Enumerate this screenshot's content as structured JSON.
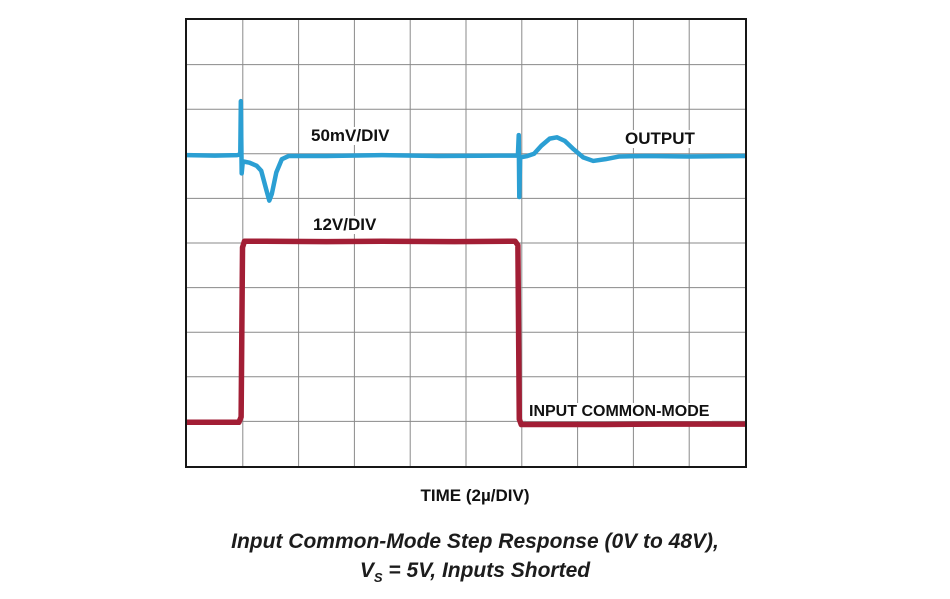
{
  "colors": {
    "output_trace": "#2B9FD3",
    "input_trace": "#A21E35",
    "grid": "#8a8a8a",
    "border": "#161616",
    "label_text": "#111111"
  },
  "plot": {
    "grid_divisions_x": 10,
    "grid_divisions_y": 10,
    "labels": {
      "output_scale": "50mV/DIV",
      "output_name": "OUTPUT",
      "input_scale": "12V/DIV",
      "input_name": "INPUT COMMON-MODE"
    }
  },
  "x_axis_label": "TIME (2µ/DIV)",
  "caption": {
    "line1": "Input Common-Mode Step Response (0V to 48V),",
    "line2_pre": "V",
    "line2_sub": "S",
    "line2_post": " = 5V, Inputs Shorted"
  },
  "chart_data": {
    "type": "line",
    "title": "Input Common-Mode Step Response (0V to 48V), Vs = 5V, Inputs Shorted",
    "xlabel": "TIME (2µ/DIV)",
    "x_units_per_div": "2µs",
    "x_range_divisions": [
      0,
      10
    ],
    "y_range_divisions": [
      0,
      10
    ],
    "grid": true,
    "legend_position": "inline-labels",
    "input_step": {
      "low_V": 0,
      "high_V": 48,
      "scale": "12V/DIV",
      "rise_at_div": 1,
      "fall_at_div": 6,
      "rise_at_time_us": 2,
      "fall_at_time_us": 12
    },
    "output_behavior": {
      "scale": "50mV/DIV",
      "steady_mV": 0,
      "rising_edge_transient_mV": {
        "spike_up": 55,
        "dip_down": -45
      },
      "falling_edge_transient_mV": {
        "spike_down": -42,
        "overshoot_up": 20
      }
    },
    "series": [
      {
        "name": "OUTPUT",
        "data_name": "output-trace",
        "scale": "50mV/DIV",
        "color": "#2B9FD3",
        "stroke_px": 4.5,
        "points_div": [
          [
            0,
            3.03
          ],
          [
            0.5,
            3.04
          ],
          [
            0.9,
            3.03
          ],
          [
            0.93,
            3.02
          ],
          [
            0.955,
            3.0
          ],
          [
            0.965,
            1.82
          ],
          [
            0.98,
            3.44
          ],
          [
            1.0,
            3.17
          ],
          [
            1.12,
            3.2
          ],
          [
            1.25,
            3.27
          ],
          [
            1.33,
            3.38
          ],
          [
            1.42,
            3.8
          ],
          [
            1.475,
            4.05
          ],
          [
            1.52,
            3.9
          ],
          [
            1.6,
            3.42
          ],
          [
            1.7,
            3.12
          ],
          [
            1.82,
            3.05
          ],
          [
            2.5,
            3.05
          ],
          [
            3.5,
            3.03
          ],
          [
            4.5,
            3.05
          ],
          [
            5.6,
            3.04
          ],
          [
            5.93,
            3.04
          ],
          [
            5.945,
            2.58
          ],
          [
            5.955,
            3.97
          ],
          [
            5.97,
            3.08
          ],
          [
            6.1,
            3.05
          ],
          [
            6.22,
            3.0
          ],
          [
            6.35,
            2.82
          ],
          [
            6.5,
            2.66
          ],
          [
            6.63,
            2.63
          ],
          [
            6.77,
            2.71
          ],
          [
            6.93,
            2.9
          ],
          [
            7.1,
            3.08
          ],
          [
            7.28,
            3.16
          ],
          [
            7.5,
            3.12
          ],
          [
            7.75,
            3.06
          ],
          [
            8.2,
            3.05
          ],
          [
            9.0,
            3.06
          ],
          [
            10,
            3.05
          ]
        ]
      },
      {
        "name": "INPUT COMMON-MODE",
        "data_name": "input-common-mode-trace",
        "scale": "12V/DIV",
        "color": "#A21E35",
        "stroke_px": 5.5,
        "points_div": [
          [
            0,
            9.02
          ],
          [
            0.45,
            9.02
          ],
          [
            0.93,
            9.02
          ],
          [
            0.97,
            8.9
          ],
          [
            0.995,
            5.1
          ],
          [
            1.03,
            4.96
          ],
          [
            1.4,
            4.96
          ],
          [
            2.5,
            4.97
          ],
          [
            3.5,
            4.96
          ],
          [
            4.8,
            4.97
          ],
          [
            5.88,
            4.96
          ],
          [
            5.93,
            5.05
          ],
          [
            5.955,
            8.95
          ],
          [
            5.99,
            9.07
          ],
          [
            6.4,
            9.07
          ],
          [
            7.5,
            9.07
          ],
          [
            8.5,
            9.06
          ],
          [
            10,
            9.06
          ]
        ]
      }
    ]
  }
}
